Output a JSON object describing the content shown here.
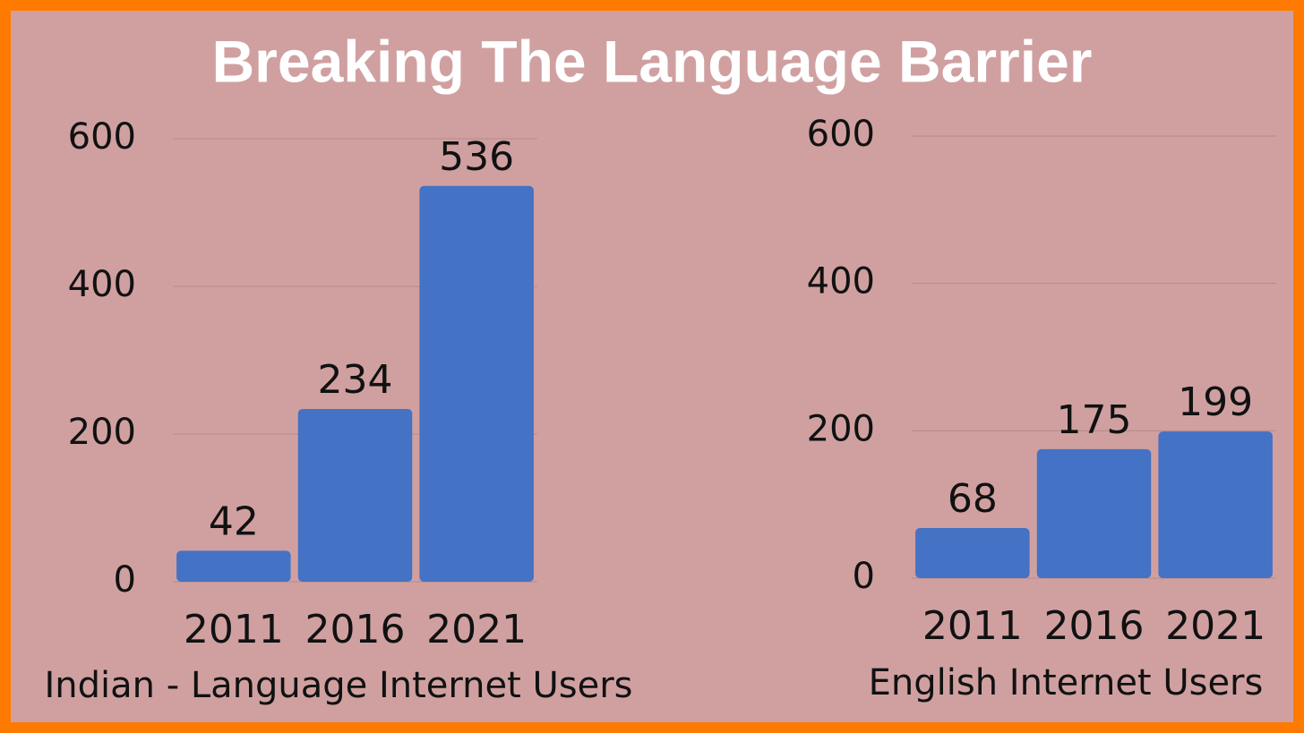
{
  "title": "Breaking The Language Barrier",
  "chart_data": [
    {
      "type": "bar",
      "x_label": "Indian - Language Internet Users",
      "categories": [
        "2011",
        "2016",
        "2021"
      ],
      "values": [
        42,
        234,
        536
      ],
      "color": "#4472c4",
      "ylim": [
        0,
        600
      ],
      "yticks": [
        0,
        200,
        400,
        600
      ],
      "grid": true
    },
    {
      "type": "bar",
      "x_label": "English Internet Users",
      "categories": [
        "2011",
        "2016",
        "2021"
      ],
      "values": [
        68,
        175,
        199
      ],
      "color": "#4472c4",
      "ylim": [
        0,
        600
      ],
      "yticks": [
        0,
        200,
        400,
        600
      ],
      "grid": true
    }
  ]
}
